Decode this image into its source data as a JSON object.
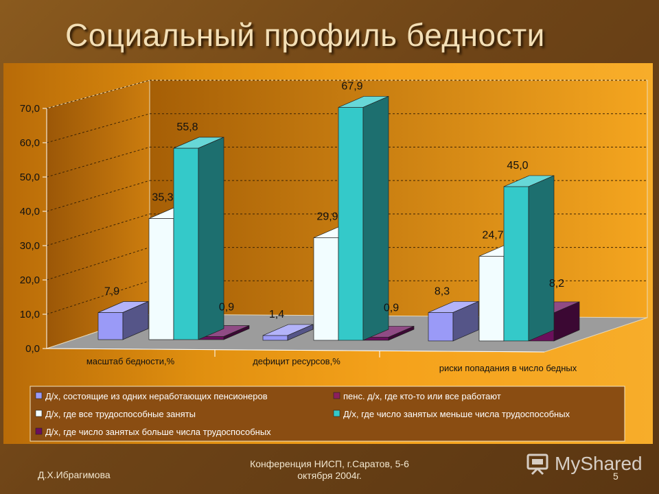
{
  "slide": {
    "title": "Социальный профиль бедности",
    "author": "Д.Х.Ибрагимова",
    "conference_line1": "Конференция НИСП, г.Саратов, 5-6",
    "conference_line2": "октября 2004г.",
    "page_number": "5",
    "watermark": "MyShared",
    "watermark_icon": "presentation-board-icon"
  },
  "colors": {
    "panel_gradient_start": "#b86b08",
    "panel_gradient_end": "#f7ad2a",
    "title_text": "#f3dfb6",
    "footer_text": "#f1e6cf"
  },
  "chart_data": {
    "type": "bar",
    "title": "Социальный профиль бедности",
    "xlabel": "",
    "ylabel": "",
    "ylim": [
      0,
      70
    ],
    "y_ticks": [
      "0,0",
      "10,0",
      "20,0",
      "30,0",
      "40,0",
      "50,0",
      "60,0",
      "70,0"
    ],
    "categories": [
      "масштаб бедности,%",
      "дефицит ресурсов,%",
      "риски попадания в число бедных"
    ],
    "series": [
      {
        "name": "Д/х, состоящие из одних неработающих пенсионеров",
        "color": "#9a9af7",
        "values": [
          7.9,
          1.4,
          8.3
        ],
        "labels": [
          "7,9",
          "1,4",
          "8,3"
        ]
      },
      {
        "name": "пенс. д/х, где кто-то или все работают",
        "color": "#8c1f5c",
        "values": [
          0,
          0,
          0
        ],
        "labels": [
          "",
          "",
          ""
        ]
      },
      {
        "name": "Д/х, где все трудоспособные заняты",
        "color": "#f2fdff",
        "values": [
          35.3,
          29.9,
          24.7
        ],
        "labels": [
          "35,3",
          "29,9",
          "24,7"
        ]
      },
      {
        "name": "Д/х, где число занятых меньше числа трудоспособных",
        "color": "#34c9c9",
        "values": [
          55.8,
          67.9,
          45.0
        ],
        "labels": [
          "55,8",
          "67,9",
          "45,0"
        ]
      },
      {
        "name": "Д/х, где число занятых больше числа трудоспособных",
        "color": "#6b0f5c",
        "values": [
          0.9,
          0.9,
          8.2
        ],
        "labels": [
          "0,9",
          "0,9",
          "8,2"
        ]
      }
    ],
    "legend_position": "bottom",
    "grid": true
  }
}
